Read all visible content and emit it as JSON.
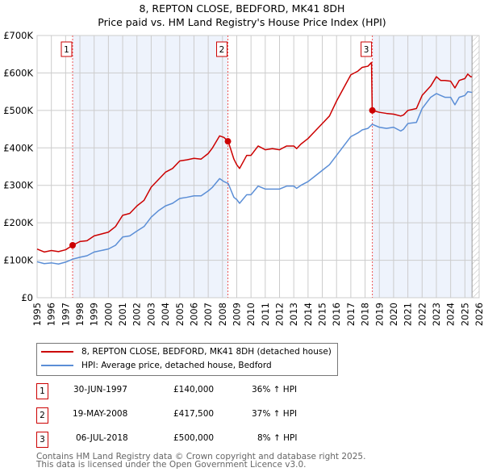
{
  "chart_data": {
    "type": "line",
    "title": "8, REPTON CLOSE, BEDFORD, MK41 8DH",
    "subtitle": "Price paid vs. HM Land Registry's House Price Index (HPI)",
    "xlim": [
      1995,
      2026
    ],
    "ylim": [
      0,
      700000
    ],
    "x_ticks": [
      "1995",
      "1996",
      "1997",
      "1998",
      "1999",
      "2000",
      "2001",
      "2002",
      "2003",
      "2004",
      "2005",
      "2006",
      "2007",
      "2008",
      "2009",
      "2010",
      "2011",
      "2012",
      "2013",
      "2014",
      "2015",
      "2016",
      "2017",
      "2018",
      "2019",
      "2020",
      "2021",
      "2022",
      "2023",
      "2024",
      "2025",
      "2026"
    ],
    "y_ticks": [
      {
        "v": 0,
        "label": "£0"
      },
      {
        "v": 100000,
        "label": "£100K"
      },
      {
        "v": 200000,
        "label": "£200K"
      },
      {
        "v": 300000,
        "label": "£300K"
      },
      {
        "v": 400000,
        "label": "£400K"
      },
      {
        "v": 500000,
        "label": "£500K"
      },
      {
        "v": 600000,
        "label": "£600K"
      },
      {
        "v": 700000,
        "label": "£700K"
      }
    ],
    "grid": true,
    "series": [
      {
        "name": "8, REPTON CLOSE, BEDFORD, MK41 8DH (detached house)",
        "color": "#cc0000",
        "x": [
          1995,
          1995.5,
          1996,
          1996.5,
          1997,
          1997.5,
          1998,
          1998.5,
          1999,
          2000,
          2000.5,
          2001,
          2001.5,
          2002,
          2002.5,
          2003,
          2003.5,
          2004,
          2004.5,
          2005,
          2005.5,
          2006,
          2006.5,
          2007,
          2007.3,
          2007.8,
          2008.1,
          2008.4,
          2008.8,
          2009,
          2009.2,
          2009.7,
          2010,
          2010.5,
          2011,
          2011.5,
          2012,
          2012.5,
          2013,
          2013.2,
          2013.5,
          2014,
          2014.5,
          2015,
          2015.5,
          2016,
          2016.5,
          2017,
          2017.5,
          2017.8,
          2018.2,
          2018.45,
          2018.5,
          2019,
          2019.5,
          2020,
          2020.5,
          2020.7,
          2021,
          2021.6,
          2022,
          2022.6,
          2023,
          2023.3,
          2023.6,
          2024,
          2024.3,
          2024.6,
          2025,
          2025.2,
          2025.4,
          2025.5
        ],
        "y": [
          130000,
          122000,
          126000,
          123000,
          128000,
          140000,
          150000,
          152000,
          165000,
          175000,
          190000,
          220000,
          225000,
          245000,
          260000,
          295000,
          315000,
          335000,
          345000,
          365000,
          368000,
          372000,
          370000,
          385000,
          400000,
          432000,
          428000,
          417500,
          370000,
          355000,
          345000,
          380000,
          380000,
          405000,
          395000,
          398000,
          395000,
          405000,
          405000,
          398000,
          410000,
          425000,
          445000,
          465000,
          485000,
          525000,
          560000,
          595000,
          605000,
          615000,
          618000,
          628000,
          500000,
          495000,
          492000,
          490000,
          485000,
          488000,
          500000,
          505000,
          540000,
          565000,
          590000,
          580000,
          580000,
          578000,
          560000,
          580000,
          585000,
          597000,
          590000,
          590000
        ]
      },
      {
        "name": "HPI: Average price, detached house, Bedford",
        "color": "#5b8ed6",
        "x": [
          1995,
          1995.5,
          1996,
          1996.5,
          1997,
          1997.5,
          1998,
          1998.5,
          1999,
          2000,
          2000.5,
          2001,
          2001.5,
          2002,
          2002.5,
          2003,
          2003.5,
          2004,
          2004.5,
          2005,
          2005.5,
          2006,
          2006.5,
          2007,
          2007.3,
          2007.8,
          2008.1,
          2008.4,
          2008.8,
          2009,
          2009.2,
          2009.7,
          2010,
          2010.5,
          2011,
          2011.5,
          2012,
          2012.5,
          2013,
          2013.2,
          2013.5,
          2014,
          2014.5,
          2015,
          2015.5,
          2016,
          2016.5,
          2017,
          2017.5,
          2017.8,
          2018.2,
          2018.5,
          2019,
          2019.5,
          2020,
          2020.5,
          2020.7,
          2021,
          2021.6,
          2022,
          2022.6,
          2023,
          2023.3,
          2023.6,
          2024,
          2024.3,
          2024.6,
          2025,
          2025.2,
          2025.5
        ],
        "y": [
          96000,
          91000,
          93000,
          90000,
          95000,
          103000,
          108000,
          112000,
          122000,
          130000,
          140000,
          162000,
          165000,
          178000,
          190000,
          215000,
          232000,
          245000,
          252000,
          265000,
          268000,
          272000,
          272000,
          285000,
          295000,
          318000,
          310000,
          305000,
          268000,
          262000,
          252000,
          275000,
          275000,
          298000,
          290000,
          290000,
          290000,
          298000,
          298000,
          292000,
          300000,
          310000,
          325000,
          340000,
          355000,
          380000,
          405000,
          430000,
          440000,
          448000,
          452000,
          463000,
          455000,
          452000,
          455000,
          445000,
          450000,
          465000,
          468000,
          505000,
          535000,
          545000,
          540000,
          535000,
          535000,
          515000,
          535000,
          540000,
          550000,
          548000
        ]
      }
    ],
    "sales": [
      {
        "n": "1",
        "x": 1997.49,
        "price": 140000,
        "date": "30-JUN-1997",
        "price_label": "£140,000",
        "delta": "36% ↑ HPI"
      },
      {
        "n": "2",
        "x": 2008.38,
        "price": 417500,
        "date": "19-MAY-2008",
        "price_label": "£417,500",
        "delta": "37% ↑ HPI"
      },
      {
        "n": "3",
        "x": 2018.51,
        "price": 500000,
        "date": "06-JUL-2018",
        "price_label": "£500,000",
        "delta": "8% ↑ HPI"
      }
    ],
    "future_from": 2025.5,
    "legend_position": "below"
  },
  "footer": {
    "line1": "Contains HM Land Registry data © Crown copyright and database right 2025.",
    "line2": "This data is licensed under the Open Government Licence v3.0."
  }
}
